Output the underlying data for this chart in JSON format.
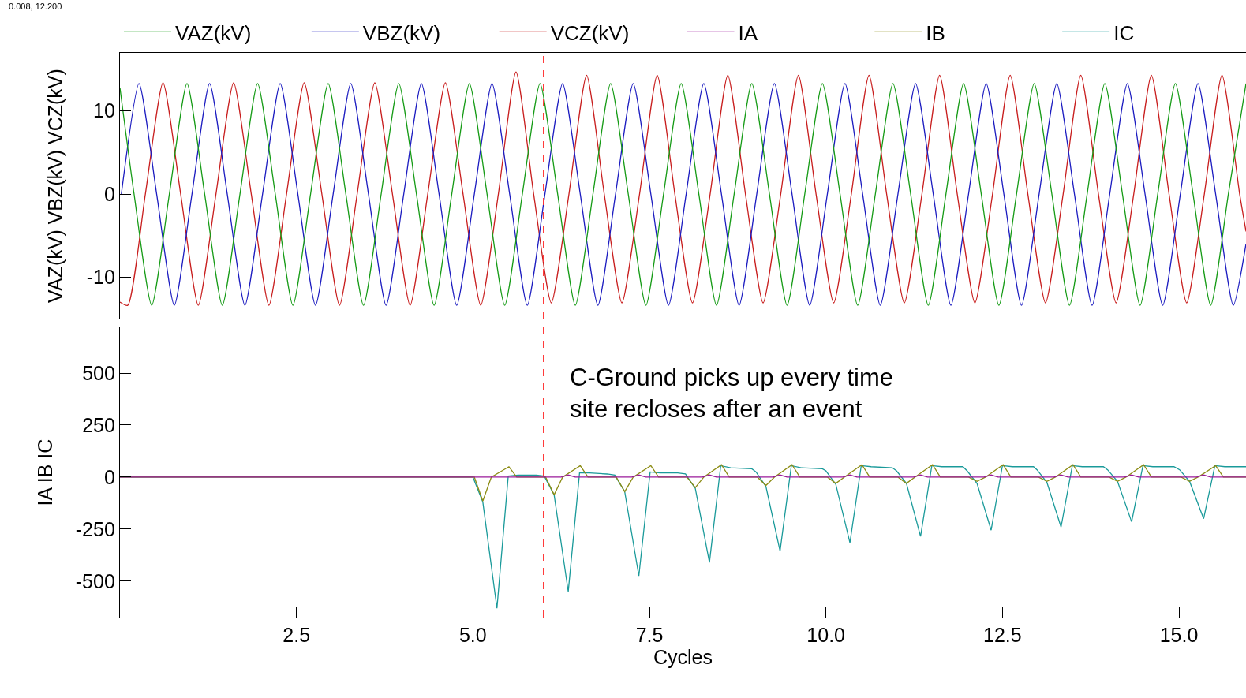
{
  "chart_data": [
    {
      "type": "line",
      "ylabel": "VAZ(kV) VBZ(kV) VCZ(kV)",
      "legend": "top",
      "marker": "none",
      "line_style": "solid",
      "grid": false,
      "tick_labels": "y",
      "annotations": [
        "0.008, 12.200"
      ],
      "xlim": [
        0,
        15.95
      ],
      "ylim": [
        -15,
        17
      ],
      "yticks": [
        -10,
        0,
        10
      ],
      "ref_lines": [
        {
          "axis": "x",
          "value": 6.0,
          "color": "#ff3333",
          "line_style": "dashed"
        }
      ],
      "series": [
        {
          "name": "VAZ(kV)",
          "color": "#169b16",
          "x": [
            0,
            0.2,
            0.45,
            0.7,
            0.95,
            1.2,
            1.45,
            1.7,
            1.95,
            2.2,
            2.45,
            2.7,
            2.95,
            3.2,
            3.45,
            3.7,
            3.95,
            4.2,
            4.45,
            4.7,
            4.95,
            5.2,
            5.45,
            5.7,
            5.95,
            6.2,
            6.45,
            6.7,
            6.95,
            7.2,
            7.45,
            7.7,
            7.95,
            8.2,
            8.45,
            8.7,
            8.95,
            9.2,
            9.45,
            9.7,
            9.95,
            10.2,
            10.45,
            10.7,
            10.95,
            11.2,
            11.45,
            11.7,
            11.95,
            12.2,
            12.45,
            12.7,
            12.95,
            13.2,
            13.45,
            13.7,
            13.95,
            14.2,
            14.45,
            14.7,
            14.95,
            15.2,
            15.45,
            15.7,
            15.95
          ],
          "values": [
            12.8,
            0,
            -13.4,
            0,
            13.3,
            0,
            -13.4,
            0,
            13.3,
            0,
            -13.4,
            0,
            13.3,
            0,
            -13.4,
            0,
            13.3,
            0,
            -13.4,
            0,
            13.3,
            0,
            -13.4,
            0,
            13.3,
            0,
            -13.4,
            0,
            13.3,
            0,
            -13.4,
            0,
            13.3,
            0,
            -13.4,
            0,
            13.3,
            0,
            -13.4,
            0,
            13.3,
            0,
            -13.4,
            0,
            13.3,
            0,
            -13.4,
            0,
            13.3,
            0,
            -13.4,
            0,
            13.3,
            0,
            -13.4,
            0,
            13.3,
            0,
            -13.4,
            0,
            13.3,
            0,
            -13.4,
            0,
            13.3
          ]
        },
        {
          "name": "VBZ(kV)",
          "color": "#1c1cc0",
          "x": [
            0.02,
            0.27,
            0.52,
            0.77,
            1.02,
            1.27,
            1.52,
            1.77,
            2.02,
            2.27,
            2.52,
            2.77,
            3.02,
            3.27,
            3.52,
            3.77,
            4.02,
            4.27,
            4.52,
            4.77,
            5.02,
            5.27,
            5.52,
            5.77,
            6.02,
            6.27,
            6.52,
            6.77,
            7.02,
            7.27,
            7.52,
            7.77,
            8.02,
            8.27,
            8.52,
            8.77,
            9.02,
            9.27,
            9.52,
            9.77,
            10.02,
            10.27,
            10.52,
            10.77,
            11.02,
            11.27,
            11.52,
            11.77,
            12.02,
            12.27,
            12.52,
            12.77,
            13.02,
            13.27,
            13.52,
            13.77,
            14.02,
            14.27,
            14.52,
            14.77,
            15.02,
            15.27,
            15.52,
            15.77,
            15.95
          ],
          "values": [
            0,
            13.3,
            0,
            -13.4,
            0,
            13.3,
            0,
            -13.4,
            0,
            13.3,
            0,
            -13.4,
            0,
            13.3,
            0,
            -13.4,
            0,
            13.3,
            0,
            -13.4,
            0,
            13.3,
            0,
            -13.4,
            0,
            13.3,
            0,
            -13.4,
            0,
            13.3,
            0,
            -13.4,
            0,
            13.3,
            0,
            -13.4,
            0,
            13.3,
            0,
            -13.4,
            0,
            13.3,
            0,
            -13.4,
            0,
            13.3,
            0,
            -13.4,
            0,
            13.3,
            0,
            -13.4,
            0,
            13.3,
            0,
            -13.4,
            0,
            13.3,
            0,
            -13.4,
            0,
            13.3,
            0,
            -13.4,
            -6
          ]
        },
        {
          "name": "VCZ(kV)",
          "color": "#c81e1e",
          "x": [
            0,
            0.11,
            0.36,
            0.61,
            0.86,
            1.11,
            1.36,
            1.61,
            1.86,
            2.11,
            2.36,
            2.61,
            2.86,
            3.11,
            3.36,
            3.61,
            3.86,
            4.11,
            4.36,
            4.61,
            4.86,
            5.11,
            5.36,
            5.61,
            5.86,
            6.11,
            6.36,
            6.61,
            6.86,
            7.11,
            7.36,
            7.61,
            7.86,
            8.11,
            8.36,
            8.61,
            8.86,
            9.11,
            9.36,
            9.61,
            9.86,
            10.11,
            10.36,
            10.61,
            10.86,
            11.11,
            11.36,
            11.61,
            11.86,
            12.11,
            12.36,
            12.61,
            12.86,
            13.11,
            13.36,
            13.61,
            13.86,
            14.11,
            14.36,
            14.61,
            14.86,
            15.11,
            15.36,
            15.61,
            15.86,
            15.95
          ],
          "values": [
            -13,
            -13.4,
            0,
            13.4,
            0,
            -13.4,
            0,
            13.4,
            0,
            -13.4,
            0,
            13.4,
            0,
            -13.4,
            0,
            13.4,
            0,
            -13.4,
            0,
            13.4,
            0,
            -13.4,
            0,
            14.7,
            0,
            -13.1,
            0,
            14.3,
            0,
            -13.1,
            0,
            14.3,
            0,
            -13.1,
            0,
            14.3,
            0,
            -13.1,
            0,
            14.3,
            0,
            -13.1,
            0,
            14.3,
            0,
            -13.1,
            0,
            14.3,
            0,
            -13.1,
            0,
            14.3,
            0,
            -13.1,
            0,
            14.3,
            0,
            -13.1,
            0,
            14.3,
            0,
            -13.1,
            0,
            14.3,
            0,
            -4.5
          ]
        }
      ]
    },
    {
      "type": "line",
      "xlabel": "Cycles",
      "ylabel": "IA IB IC",
      "legend": "top",
      "marker": "none",
      "line_style": "solid",
      "grid": false,
      "annotations": [
        "C-Ground picks up every time\nsite recloses after an event"
      ],
      "xlim": [
        0,
        15.95
      ],
      "ylim": [
        -675,
        720
      ],
      "xticks": [
        2.5,
        {
          "value": 5,
          "label": "5.0"
        },
        7.5,
        {
          "value": 10,
          "label": "10.0"
        },
        12.5,
        {
          "value": 15,
          "label": "15.0"
        }
      ],
      "yticks": [
        -500,
        -250,
        0,
        250,
        500
      ],
      "ref_lines": [
        {
          "axis": "x",
          "value": 6.0,
          "color": "#ff3333",
          "line_style": "dashed"
        }
      ],
      "series": [
        {
          "name": "IA",
          "color": "#9a1a9a",
          "x": [
            0,
            6.25,
            6.35,
            6.45,
            7.25,
            7.35,
            7.45,
            8.25,
            8.35,
            8.45,
            9.25,
            9.35,
            9.45,
            10.24,
            10.34,
            10.44,
            11.24,
            11.34,
            11.44,
            12.24,
            12.34,
            12.44,
            13.23,
            13.33,
            13.43,
            14.23,
            14.33,
            14.43,
            15.25,
            15.35,
            15.45,
            15.95
          ],
          "values": [
            0,
            0,
            10,
            0,
            0,
            10,
            0,
            0,
            10,
            0,
            0,
            10,
            0,
            0,
            10,
            0,
            0,
            10,
            0,
            0,
            10,
            0,
            0,
            10,
            0,
            0,
            10,
            0,
            0,
            10,
            0,
            0
          ]
        },
        {
          "name": "IB",
          "color": "#8c8c14",
          "x": [
            0,
            5.02,
            5.14,
            5.26,
            5.51,
            5.62,
            6.03,
            6.15,
            6.27,
            6.52,
            6.63,
            7.03,
            7.15,
            7.27,
            7.52,
            7.63,
            8.03,
            8.15,
            8.27,
            8.52,
            8.63,
            9.03,
            9.15,
            9.27,
            9.52,
            9.63,
            10.02,
            10.14,
            10.26,
            10.51,
            10.62,
            11.02,
            11.14,
            11.26,
            11.51,
            11.62,
            12.02,
            12.14,
            12.26,
            12.51,
            12.62,
            13.01,
            13.13,
            13.25,
            13.5,
            13.61,
            14.01,
            14.13,
            14.25,
            14.5,
            14.61,
            15.03,
            15.15,
            15.27,
            15.52,
            15.63,
            15.95
          ],
          "values": [
            0,
            0,
            -115,
            0,
            50,
            0,
            0,
            -85,
            0,
            55,
            0,
            0,
            -70,
            0,
            55,
            0,
            0,
            -50,
            0,
            60,
            0,
            0,
            -40,
            0,
            60,
            0,
            0,
            -30,
            0,
            60,
            0,
            0,
            -30,
            0,
            60,
            0,
            0,
            -20,
            0,
            60,
            0,
            0,
            -20,
            0,
            60,
            0,
            0,
            -20,
            0,
            60,
            0,
            0,
            -20,
            0,
            55,
            0,
            0
          ]
        },
        {
          "name": "IC",
          "color": "#1a9a9a",
          "x": [
            0,
            4.9,
            5.0,
            5.14,
            5.34,
            5.5,
            5.64,
            5.9,
            6.01,
            6.15,
            6.35,
            6.51,
            6.65,
            6.9,
            7.01,
            7.15,
            7.35,
            7.51,
            7.65,
            7.9,
            8.01,
            8.15,
            8.35,
            8.51,
            8.65,
            8.95,
            9.01,
            9.15,
            9.35,
            9.51,
            9.65,
            9.95,
            10.0,
            10.14,
            10.34,
            10.5,
            10.64,
            10.94,
            11.0,
            11.14,
            11.34,
            11.5,
            11.64,
            11.94,
            12.0,
            12.14,
            12.34,
            12.5,
            12.64,
            12.94,
            12.99,
            13.13,
            13.33,
            13.49,
            13.63,
            13.93,
            13.99,
            14.13,
            14.33,
            14.49,
            14.63,
            14.93,
            15.01,
            15.15,
            15.35,
            15.51,
            15.65,
            15.95
          ],
          "values": [
            0,
            0,
            0,
            -120,
            -630,
            5,
            10,
            10,
            5,
            -85,
            -550,
            20,
            20,
            15,
            10,
            -70,
            -475,
            25,
            20,
            20,
            15,
            -55,
            -410,
            55,
            45,
            40,
            25,
            -45,
            -355,
            55,
            45,
            40,
            30,
            -35,
            -315,
            55,
            50,
            45,
            30,
            -30,
            -285,
            55,
            50,
            50,
            30,
            -30,
            -255,
            55,
            50,
            50,
            35,
            -25,
            -240,
            55,
            50,
            50,
            35,
            -20,
            -215,
            55,
            50,
            50,
            35,
            -20,
            -200,
            55,
            50,
            50
          ]
        }
      ]
    }
  ]
}
